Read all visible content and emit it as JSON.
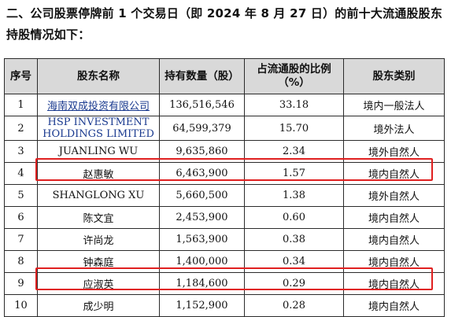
{
  "heading": "二、公司股票停牌前 1 个交易日（即 2024 年 8 月 27 日）的前十大流通股股东持股情况如下：",
  "table": {
    "headers": {
      "rank": "序号",
      "name": "股东名称",
      "shares": "持有数量（股）",
      "ratio_line1": "占流通股的比例",
      "ratio_line2": "（%）",
      "type": "股东类别"
    },
    "rows": [
      {
        "rank": "1",
        "name": "海南双成投资有限公司",
        "shares": "136,516,546",
        "ratio": "33.18",
        "type": "境内一般法人"
      },
      {
        "rank": "2",
        "name_line1": "HSP INVESTMENT",
        "name_line2": "HOLDINGS LIMITED",
        "shares": "64,599,379",
        "ratio": "15.70",
        "type": "境外法人"
      },
      {
        "rank": "3",
        "name": "JUANLING WU",
        "shares": "9,635,860",
        "ratio": "2.34",
        "type": "境外自然人"
      },
      {
        "rank": "4",
        "name": "赵惠敏",
        "shares": "6,463,900",
        "ratio": "1.57",
        "type": "境内自然人"
      },
      {
        "rank": "5",
        "name": "SHANGLONG XU",
        "shares": "5,660,500",
        "ratio": "1.38",
        "type": "境外自然人"
      },
      {
        "rank": "6",
        "name": "陈文宜",
        "shares": "2,453,900",
        "ratio": "0.60",
        "type": "境内自然人"
      },
      {
        "rank": "7",
        "name": "许尚龙",
        "shares": "1,563,900",
        "ratio": "0.38",
        "type": "境内自然人"
      },
      {
        "rank": "8",
        "name": "钟森庭",
        "shares": "1,400,000",
        "ratio": "0.34",
        "type": "境内自然人"
      },
      {
        "rank": "9",
        "name": "应淑英",
        "shares": "1,184,600",
        "ratio": "0.29",
        "type": "境内自然人"
      },
      {
        "rank": "10",
        "name": "成少明",
        "shares": "1,152,900",
        "ratio": "0.28",
        "type": "境内自然人"
      }
    ]
  },
  "colors": {
    "header_bg": "#d9d9d9",
    "highlight": "#e02020",
    "link": "#1a3a8f"
  }
}
